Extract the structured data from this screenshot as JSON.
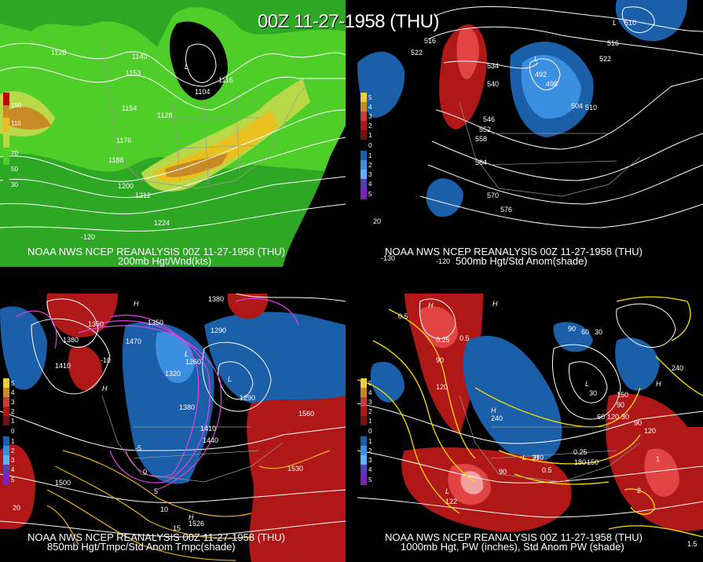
{
  "title": "00Z 11-27-1958 (THU)",
  "panels": [
    {
      "id": "200mb",
      "caption_line1": "NOAA NWS NCEP REANALYSIS 00Z 11-27-1958 (THU)",
      "caption_line2": "200mb Hgt/Wnd(kts)",
      "legend": [
        "190",
        "110",
        "70",
        "50",
        "30"
      ],
      "contour_labels": [
        "1128",
        "1140",
        "1153",
        "1154",
        "1176",
        "1188",
        "1200",
        "1212",
        "1224",
        "1104",
        "1116",
        "1128",
        "-120"
      ],
      "hl": [
        "L"
      ]
    },
    {
      "id": "500mb",
      "caption_line1": "NOAA NWS NCEP REANALYSIS 00Z 11-27-1958 (THU)",
      "caption_line2": "500mb Hgt/Std Anom(shade)",
      "legend": [
        "5",
        "4",
        "3",
        "2",
        "1",
        "0",
        "1",
        "2",
        "3",
        "4",
        "5"
      ],
      "contour_labels": [
        "516",
        "522",
        "534",
        "540",
        "546",
        "552",
        "558",
        "564",
        "570",
        "576",
        "492",
        "498",
        "504",
        "510",
        "516",
        "522",
        "510",
        "20",
        "-130",
        "-120"
      ],
      "hl": [
        "L",
        "L"
      ]
    },
    {
      "id": "850mb",
      "caption_line1": "NOAA NWS NCEP REANALYSIS 00Z 11-27-1958 (THU)",
      "caption_line2": "850mb Hgt/Tmpc/Std Anom Tmpc(shade)",
      "legend": [
        "5",
        "4",
        "3",
        "2",
        "1",
        "0",
        "1",
        "2",
        "3",
        "4",
        "5"
      ],
      "contour_labels": [
        "1350",
        "1410",
        "1380",
        "1470",
        "1320",
        "1350",
        "1260",
        "1290",
        "1380",
        "1410",
        "1440",
        "1560",
        "1530",
        "1500",
        "1290",
        "1530",
        "1380",
        "-10",
        "-5",
        "0",
        "5",
        "10",
        "15",
        "20",
        "1526"
      ],
      "hl": [
        "H",
        "H",
        "H",
        "L",
        "L"
      ]
    },
    {
      "id": "1000mb",
      "caption_line1": "NOAA NWS NCEP REANALYSIS 00Z 11-27-1958 (THU)",
      "caption_line2": "1000mb Hgt, PW (inches), Std Anom PW (shade)",
      "legend": [
        "5",
        "4",
        "3",
        "2",
        "1",
        "0",
        "1",
        "2",
        "3",
        "4",
        "5"
      ],
      "contour_labels": [
        "0.5",
        "0.25",
        "0.5",
        "90",
        "120",
        "90",
        "60",
        "30",
        "240",
        "150",
        "120",
        "90",
        "60",
        "30",
        "0.25",
        "0.5",
        "210",
        "180",
        "150",
        "240",
        "30",
        "90",
        "2",
        "1",
        "1.5",
        "120",
        "90",
        "122"
      ],
      "hl": [
        "H",
        "H",
        "H",
        "H",
        "L",
        "L",
        "L",
        "H"
      ]
    }
  ],
  "colors": {
    "wind_light": "#4fce2a",
    "wind_mid": "#2ea824",
    "wind_yellow": "#e8c020",
    "wind_orange": "#c78a24",
    "anom_blue": "#1a5fa8",
    "anom_lightblue": "#3b8fe0",
    "anom_red": "#b01818",
    "anom_pink": "#e24444",
    "pw_yellow": "#ffe000",
    "tmp_magenta": "#e040e0",
    "tmp_orange": "#f0b020"
  }
}
